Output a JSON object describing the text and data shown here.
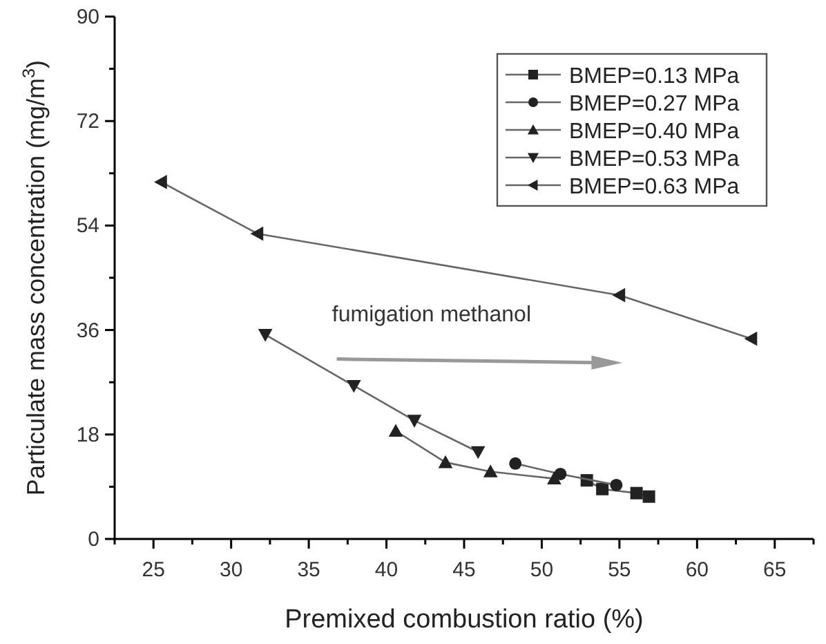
{
  "chart_data": {
    "type": "line",
    "xlabel": "Premixed combustion ratio (%)",
    "ylabel": "Particulate mass concentration (mg/m$^{3}$)",
    "xlim": [
      22.5,
      67.5
    ],
    "ylim": [
      0,
      90
    ],
    "xticks": [
      {
        "value": 22.5,
        "label": null
      },
      25,
      {
        "value": 27.5,
        "label": null
      },
      30,
      {
        "value": 32.5,
        "label": null
      },
      35,
      {
        "value": 37.5,
        "label": null
      },
      40,
      {
        "value": 42.5,
        "label": null
      },
      45,
      {
        "value": 47.5,
        "label": null
      },
      50,
      {
        "value": 52.5,
        "label": null
      },
      55,
      {
        "value": 57.5,
        "label": null
      },
      60,
      {
        "value": 62.5,
        "label": null
      },
      65,
      {
        "value": 67.5,
        "label": null
      }
    ],
    "yticks": [
      0,
      {
        "value": 9,
        "label": null
      },
      18,
      {
        "value": 27,
        "label": null
      },
      36,
      {
        "value": 45,
        "label": null
      },
      54,
      {
        "value": 63,
        "label": null
      },
      72,
      {
        "value": 81,
        "label": null
      },
      90
    ],
    "legend": "top right",
    "grid": false,
    "annotations": [
      "fumigation methanol"
    ],
    "series": [
      {
        "name": "BMEP=0.13 MPa",
        "color": "#222222",
        "marker": "square",
        "x": [
          52.9,
          53.9,
          56.1,
          56.9
        ],
        "values": [
          10.1,
          8.6,
          7.9,
          7.3
        ]
      },
      {
        "name": "BMEP=0.27 MPa",
        "color": "#222222",
        "marker": "circle",
        "x": [
          48.3,
          51.2,
          54.8
        ],
        "values": [
          13.0,
          11.2,
          9.3
        ]
      },
      {
        "name": "BMEP=0.40 MPa",
        "color": "#222222",
        "marker": "triangle",
        "x": [
          40.6,
          43.8,
          46.7,
          50.8
        ],
        "values": [
          18.6,
          13.2,
          11.6,
          10.4
        ]
      },
      {
        "name": "BMEP=0.53 MPa",
        "color": "#222222",
        "marker": "triangle-down",
        "x": [
          32.2,
          37.9,
          41.8,
          45.9
        ],
        "values": [
          35.2,
          26.4,
          20.4,
          15.0
        ]
      },
      {
        "name": "BMEP=0.63 MPa",
        "color": "#222222",
        "marker": "triangle-left",
        "x": [
          25.5,
          31.7,
          55.0,
          63.5
        ],
        "values": [
          61.5,
          52.6,
          42.0,
          34.5
        ]
      }
    ]
  }
}
